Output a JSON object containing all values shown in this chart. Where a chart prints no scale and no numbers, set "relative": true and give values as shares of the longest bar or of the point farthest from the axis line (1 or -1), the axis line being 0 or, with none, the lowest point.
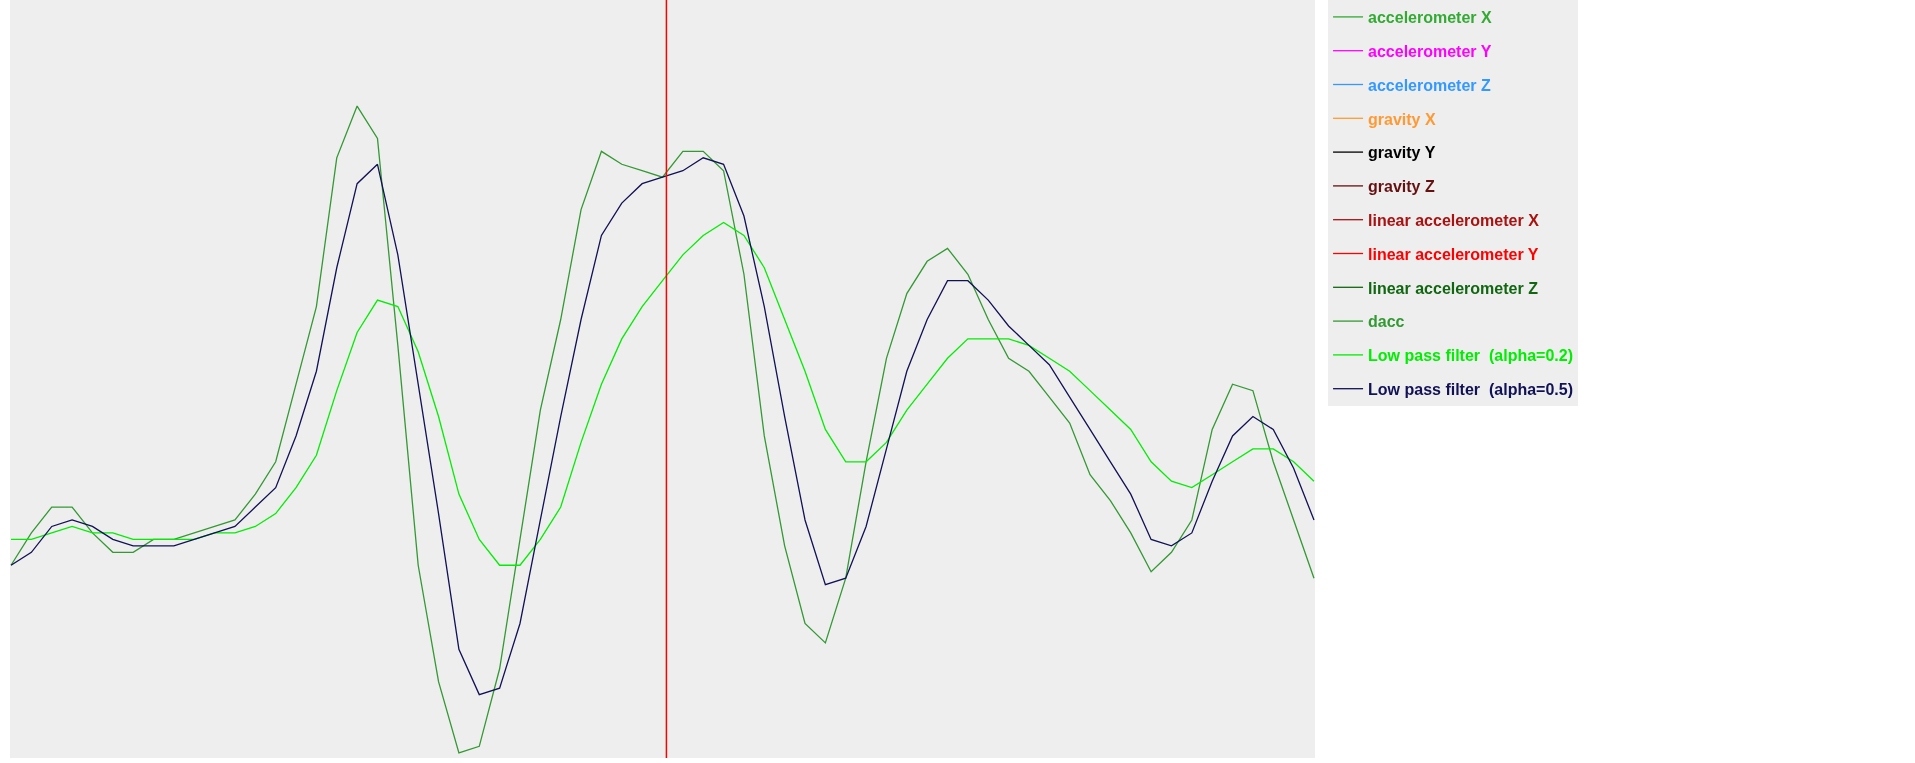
{
  "chart_data": {
    "type": "line",
    "relative": true,
    "legend": "top right",
    "grid": false,
    "marker": "none",
    "line_style": "solid",
    "categories": [
      null,
      null,
      null,
      null,
      null,
      null,
      null,
      null,
      null,
      null,
      null,
      null,
      null,
      null,
      null,
      null,
      null,
      null,
      null,
      null,
      null,
      null,
      null,
      null,
      null,
      null,
      null,
      null,
      null,
      null,
      null,
      null,
      null,
      null,
      null,
      null,
      null,
      null,
      null,
      null,
      null,
      null,
      null,
      null,
      null,
      null,
      null,
      null,
      null,
      null,
      null,
      null,
      null,
      null,
      null,
      null,
      null,
      null,
      null,
      null,
      null,
      null,
      null,
      null,
      null
    ],
    "series": [
      {
        "name": "accelerometer X",
        "color": "#33aa33",
        "values": [
          null,
          null,
          null,
          null,
          null,
          null,
          null,
          null,
          null,
          null,
          null,
          null,
          null,
          null,
          null,
          null,
          null,
          null,
          null,
          null,
          null,
          null,
          null,
          null,
          null,
          null,
          null,
          null,
          null,
          null,
          null,
          null,
          null,
          null,
          null,
          null,
          null,
          null,
          null,
          null,
          null,
          null,
          null,
          null,
          null,
          null,
          null,
          null,
          null,
          null,
          null,
          null,
          null,
          null,
          null,
          null,
          null,
          null,
          null,
          null,
          null,
          null,
          null,
          null,
          null
        ]
      },
      {
        "name": "accelerometer Y",
        "color": "#ff00ff",
        "values": [
          null,
          null,
          null,
          null,
          null,
          null,
          null,
          null,
          null,
          null,
          null,
          null,
          null,
          null,
          null,
          null,
          null,
          null,
          null,
          null,
          null,
          null,
          null,
          null,
          null,
          null,
          null,
          null,
          null,
          null,
          null,
          null,
          null,
          null,
          null,
          null,
          null,
          null,
          null,
          null,
          null,
          null,
          null,
          null,
          null,
          null,
          null,
          null,
          null,
          null,
          null,
          null,
          null,
          null,
          null,
          null,
          null,
          null,
          null,
          null,
          null,
          null,
          null,
          null,
          null
        ]
      },
      {
        "name": "accelerometer Z",
        "color": "#3399ff",
        "values": [
          null,
          null,
          null,
          null,
          null,
          null,
          null,
          null,
          null,
          null,
          null,
          null,
          null,
          null,
          null,
          null,
          null,
          null,
          null,
          null,
          null,
          null,
          null,
          null,
          null,
          null,
          null,
          null,
          null,
          null,
          null,
          null,
          null,
          null,
          null,
          null,
          null,
          null,
          null,
          null,
          null,
          null,
          null,
          null,
          null,
          null,
          null,
          null,
          null,
          null,
          null,
          null,
          null,
          null,
          null,
          null,
          null,
          null,
          null,
          null,
          null,
          null,
          null,
          null,
          null
        ]
      },
      {
        "name": "gravity X",
        "color": "#ff9933",
        "values": [
          null,
          null,
          null,
          null,
          null,
          null,
          null,
          null,
          null,
          null,
          null,
          null,
          null,
          null,
          null,
          null,
          null,
          null,
          null,
          null,
          null,
          null,
          null,
          null,
          null,
          null,
          null,
          null,
          null,
          null,
          null,
          null,
          null,
          null,
          null,
          null,
          null,
          null,
          null,
          null,
          null,
          null,
          null,
          null,
          null,
          null,
          null,
          null,
          null,
          null,
          null,
          null,
          null,
          null,
          null,
          null,
          null,
          null,
          null,
          null,
          null,
          null,
          null,
          null,
          null
        ]
      },
      {
        "name": "gravity Y",
        "color": "#000000",
        "values": [
          null,
          null,
          null,
          null,
          null,
          null,
          null,
          null,
          null,
          null,
          null,
          null,
          null,
          null,
          null,
          null,
          null,
          null,
          null,
          null,
          null,
          null,
          null,
          null,
          null,
          null,
          null,
          null,
          null,
          null,
          null,
          null,
          null,
          null,
          null,
          null,
          null,
          null,
          null,
          null,
          null,
          null,
          null,
          null,
          null,
          null,
          null,
          null,
          null,
          null,
          null,
          null,
          null,
          null,
          null,
          null,
          null,
          null,
          null,
          null,
          null,
          null,
          null,
          null,
          null
        ]
      },
      {
        "name": "gravity Z",
        "color": "#661111",
        "values": [
          null,
          null,
          null,
          null,
          null,
          null,
          null,
          null,
          null,
          null,
          null,
          null,
          null,
          null,
          null,
          null,
          null,
          null,
          null,
          null,
          null,
          null,
          null,
          null,
          null,
          null,
          null,
          null,
          null,
          null,
          null,
          null,
          null,
          null,
          null,
          null,
          null,
          null,
          null,
          null,
          null,
          null,
          null,
          null,
          null,
          null,
          null,
          null,
          null,
          null,
          null,
          null,
          null,
          null,
          null,
          null,
          null,
          null,
          null,
          null,
          null,
          null,
          null,
          null,
          null
        ]
      },
      {
        "name": "linear accelerometer X",
        "color": "#aa1111",
        "values": [
          null,
          null,
          null,
          null,
          null,
          null,
          null,
          null,
          null,
          null,
          null,
          null,
          null,
          null,
          null,
          null,
          null,
          null,
          null,
          null,
          null,
          null,
          null,
          null,
          null,
          null,
          null,
          null,
          null,
          null,
          null,
          null,
          null,
          null,
          null,
          null,
          null,
          null,
          null,
          null,
          null,
          null,
          null,
          null,
          null,
          null,
          null,
          null,
          null,
          null,
          null,
          null,
          null,
          null,
          null,
          null,
          null,
          null,
          null,
          null,
          null,
          null,
          null,
          null,
          null
        ]
      },
      {
        "name": "linear accelerometer Y",
        "color": "#ff0000",
        "values": [
          null,
          null,
          null,
          null,
          null,
          null,
          null,
          null,
          null,
          null,
          null,
          null,
          null,
          null,
          null,
          null,
          null,
          null,
          null,
          null,
          null,
          null,
          null,
          null,
          null,
          null,
          null,
          null,
          null,
          null,
          null,
          null,
          null,
          null,
          null,
          null,
          null,
          null,
          null,
          null,
          null,
          null,
          null,
          null,
          null,
          null,
          null,
          null,
          null,
          null,
          null,
          null,
          null,
          null,
          null,
          null,
          null,
          null,
          null,
          null,
          null,
          null,
          null,
          null,
          null
        ]
      },
      {
        "name": "linear accelerometer Z",
        "color": "#116611",
        "values": [
          null,
          null,
          null,
          null,
          null,
          null,
          null,
          null,
          null,
          null,
          null,
          null,
          null,
          null,
          null,
          null,
          null,
          null,
          null,
          null,
          null,
          null,
          null,
          null,
          null,
          null,
          null,
          null,
          null,
          null,
          null,
          null,
          null,
          null,
          null,
          null,
          null,
          null,
          null,
          null,
          null,
          null,
          null,
          null,
          null,
          null,
          null,
          null,
          null,
          null,
          null,
          null,
          null,
          null,
          null,
          null,
          null,
          null,
          null,
          null,
          null,
          null,
          null,
          null,
          null
        ]
      },
      {
        "name": "dacc",
        "color": "#339933",
        "values": [
          0.29,
          0.34,
          0.38,
          0.38,
          0.34,
          0.31,
          0.31,
          0.33,
          0.33,
          0.34,
          0.35,
          0.36,
          0.4,
          0.45,
          0.57,
          0.69,
          0.92,
          1,
          0.95,
          0.63,
          0.29,
          0.11,
          0,
          0.01,
          0.13,
          0.33,
          0.53,
          0.67,
          0.84,
          0.93,
          0.91,
          0.9,
          0.89,
          0.93,
          0.93,
          0.9,
          0.74,
          0.49,
          0.32,
          0.2,
          0.17,
          0.27,
          0.45,
          0.61,
          0.71,
          0.76,
          0.78,
          0.74,
          0.67,
          0.61,
          0.59,
          0.55,
          0.51,
          0.43,
          0.39,
          0.34,
          0.28,
          0.31,
          0.36,
          0.5,
          0.57,
          0.56,
          0.45,
          0.36,
          0.27
        ]
      },
      {
        "name": "Low pass filter  (alpha=0.2)",
        "color": "#00ee00",
        "values": [
          0.33,
          0.33,
          0.34,
          0.35,
          0.34,
          0.34,
          0.33,
          0.33,
          0.33,
          0.33,
          0.34,
          0.34,
          0.35,
          0.37,
          0.41,
          0.46,
          0.56,
          0.65,
          0.7,
          0.69,
          0.62,
          0.52,
          0.4,
          0.33,
          0.29,
          0.29,
          0.33,
          0.38,
          0.48,
          0.57,
          0.64,
          0.69,
          0.73,
          0.77,
          0.8,
          0.82,
          0.8,
          0.75,
          0.67,
          0.59,
          0.5,
          0.45,
          0.45,
          0.48,
          0.53,
          0.57,
          0.61,
          0.64,
          0.64,
          0.64,
          0.63,
          0.61,
          0.59,
          0.56,
          0.53,
          0.5,
          0.45,
          0.42,
          0.41,
          0.43,
          0.45,
          0.47,
          0.47,
          0.45,
          0.42
        ]
      },
      {
        "name": "Low pass filter  (alpha=0.5)",
        "color": "#111155",
        "values": [
          0.29,
          0.31,
          0.35,
          0.36,
          0.35,
          0.33,
          0.32,
          0.32,
          0.32,
          0.33,
          0.34,
          0.35,
          0.38,
          0.41,
          0.49,
          0.59,
          0.75,
          0.88,
          0.91,
          0.77,
          0.57,
          0.37,
          0.16,
          0.09,
          0.1,
          0.2,
          0.36,
          0.52,
          0.67,
          0.8,
          0.85,
          0.88,
          0.89,
          0.9,
          0.92,
          0.91,
          0.83,
          0.69,
          0.52,
          0.36,
          0.26,
          0.27,
          0.35,
          0.47,
          0.59,
          0.67,
          0.73,
          0.73,
          0.7,
          0.66,
          0.63,
          0.6,
          0.55,
          0.5,
          0.45,
          0.4,
          0.33,
          0.32,
          0.34,
          0.42,
          0.49,
          0.52,
          0.5,
          0.44,
          0.36
        ]
      }
    ]
  }
}
